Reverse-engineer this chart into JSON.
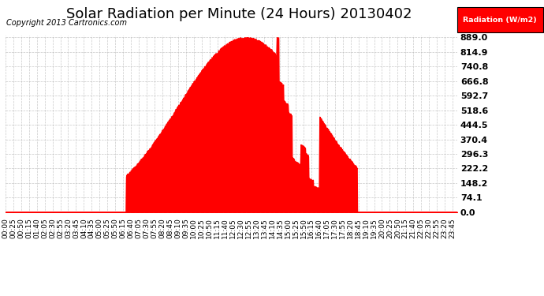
{
  "title": "Solar Radiation per Minute (24 Hours) 20130402",
  "copyright_text": "Copyright 2013 Cartronics.com",
  "ylabel_right": "Radiation (W/m2)",
  "ytick_values": [
    0.0,
    74.1,
    148.2,
    222.2,
    296.3,
    370.4,
    444.5,
    518.6,
    592.7,
    666.8,
    740.8,
    814.9,
    889.0
  ],
  "ymax": 889.0,
  "fill_color": "#FF0000",
  "line_color": "#FF0000",
  "background_color": "#FFFFFF",
  "plot_bg_color": "#FFFFFF",
  "grid_color": "#BBBBBB",
  "title_fontsize": 13,
  "copyright_fontsize": 7,
  "tick_fontsize": 6.5
}
